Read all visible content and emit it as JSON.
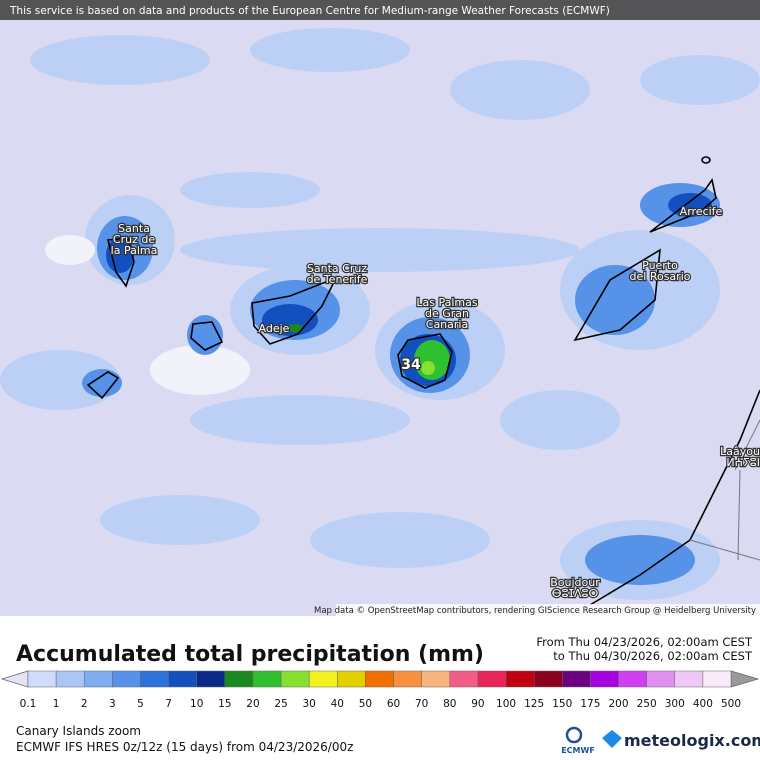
{
  "banner": "This service is based on data and products of the European Centre for Medium-range Weather Forecasts (ECMWF)",
  "map": {
    "places": [
      {
        "lines": [
          "Santa",
          "Cruz de",
          "la Palma"
        ]
      },
      {
        "lines": [
          "Santa Cruz",
          "de Tenerife"
        ]
      },
      {
        "lines": [
          "Adeje"
        ]
      },
      {
        "lines": [
          "Las Palmas",
          "de Gran",
          "Canaria"
        ]
      },
      {
        "lines": [
          "Puerto",
          "del Rosario"
        ]
      },
      {
        "lines": [
          "Arrecife"
        ]
      },
      {
        "lines": [
          "Laâyou",
          "ⵍⵄⵢⵓⵏ"
        ]
      },
      {
        "lines": [
          "Boujdour",
          "ⴱⵓⵊⴷⵓⵔ"
        ]
      }
    ],
    "max_value": "34",
    "attribution": "Map data © OpenStreetMap contributors, rendering GIScience Research Group @ Heidelberg University"
  },
  "legend": {
    "title": "Accumulated total precipitation (mm)",
    "period_from": "From Thu 04/23/2026, 02:00am CEST",
    "period_to": "to Thu 04/30/2026, 02:00am CEST",
    "levels": [
      0.1,
      1,
      2,
      3,
      5,
      7,
      10,
      15,
      20,
      25,
      30,
      40,
      50,
      60,
      70,
      80,
      90,
      100,
      125,
      150,
      175,
      200,
      250,
      300,
      400,
      500
    ],
    "below_color": "#e4e4f4",
    "colors": [
      "#cfdcfa",
      "#a9c6f6",
      "#7eaef0",
      "#5592e8",
      "#2c72dc",
      "#1250c0",
      "#0b2a88",
      "#1a8a1e",
      "#2fc02f",
      "#86e030",
      "#f2f21e",
      "#e2d000",
      "#f07000",
      "#f89040",
      "#f8b47e",
      "#f25c86",
      "#e8245a",
      "#c00010",
      "#8c0020",
      "#6c0080",
      "#a800e0",
      "#d040f0",
      "#e290f0",
      "#f0c8f8",
      "#f8eaf8"
    ],
    "above_color": "#9a9a9a"
  },
  "footer": {
    "region": "Canary Islands zoom",
    "model": "ECMWF IFS HRES 0z/12z (15 days) from  04/23/2026/00z",
    "ecmwf_logo": "ECMWF",
    "brand": "meteologix.com"
  }
}
